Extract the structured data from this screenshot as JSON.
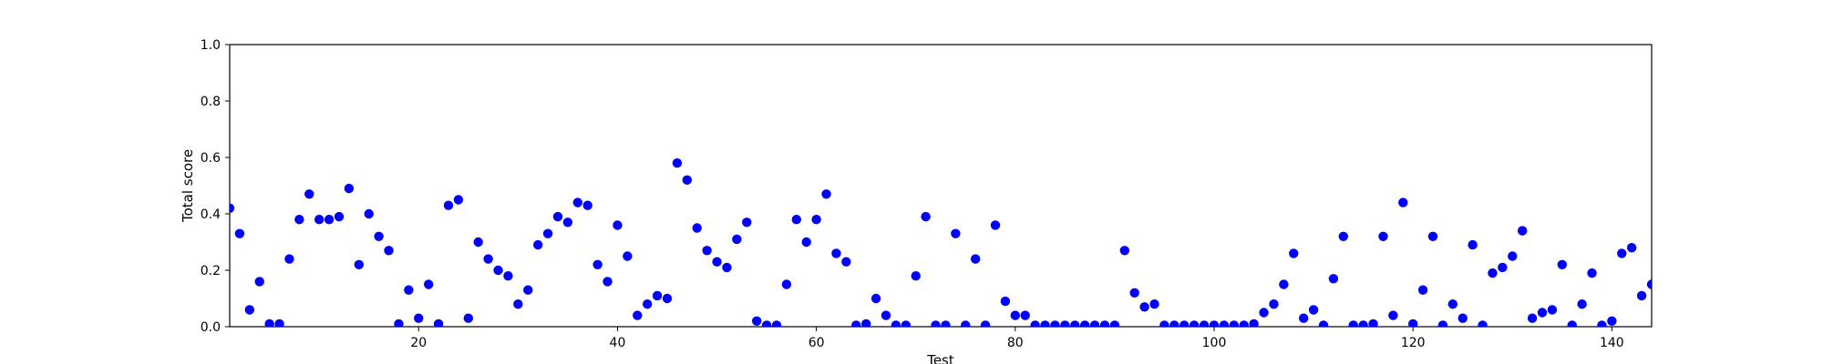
{
  "chart_data": {
    "type": "scatter",
    "title": "",
    "xlabel": "Test",
    "ylabel": "Total score",
    "xlim": [
      1,
      144
    ],
    "ylim": [
      0,
      1
    ],
    "x_ticks": [
      20,
      40,
      60,
      80,
      100,
      120,
      140
    ],
    "y_ticks": [
      0.0,
      0.2,
      0.4,
      0.6,
      0.8,
      1.0
    ],
    "x_tick_labels": [
      "20",
      "40",
      "60",
      "80",
      "100",
      "120",
      "140"
    ],
    "y_tick_labels": [
      "0.0",
      "0.2",
      "0.4",
      "0.6",
      "0.8",
      "1.0"
    ],
    "grid": false,
    "marker_color": "#0000ff",
    "series": [
      {
        "x": [
          1,
          2,
          3,
          4,
          5,
          6,
          7,
          8,
          9,
          10,
          11,
          12,
          13,
          14,
          15,
          16,
          17,
          18,
          19,
          20,
          21,
          22,
          23,
          24,
          25,
          26,
          27,
          28,
          29,
          30,
          31,
          32,
          33,
          34,
          35,
          36,
          37,
          38,
          39,
          40,
          41,
          42,
          43,
          44,
          45,
          46,
          47,
          48,
          49,
          50,
          51,
          52,
          53,
          54,
          55,
          56,
          57,
          58,
          59,
          60,
          61,
          62,
          63,
          64,
          65,
          66,
          67,
          68,
          69,
          70,
          71,
          72,
          73,
          74,
          75,
          76,
          77,
          78,
          79,
          80,
          81,
          82,
          83,
          84,
          85,
          86,
          87,
          88,
          89,
          90,
          91,
          92,
          93,
          94,
          95,
          96,
          97,
          98,
          99,
          100,
          101,
          102,
          103,
          104,
          105,
          106,
          107,
          108,
          109,
          110,
          111,
          112,
          113,
          114,
          115,
          116,
          117,
          118,
          119,
          120,
          121,
          122,
          123,
          124,
          125,
          126,
          127,
          128,
          129,
          130,
          131,
          132,
          133,
          134,
          135,
          136,
          137,
          138,
          139,
          140,
          141,
          142,
          143,
          144
        ],
        "y": [
          0.42,
          0.33,
          0.06,
          0.16,
          0.01,
          0.01,
          0.24,
          0.38,
          0.47,
          0.38,
          0.38,
          0.39,
          0.49,
          0.22,
          0.4,
          0.32,
          0.27,
          0.01,
          0.13,
          0.03,
          0.15,
          0.01,
          0.43,
          0.45,
          0.03,
          0.3,
          0.24,
          0.2,
          0.18,
          0.08,
          0.13,
          0.29,
          0.33,
          0.39,
          0.37,
          0.44,
          0.43,
          0.22,
          0.16,
          0.36,
          0.25,
          0.04,
          0.08,
          0.11,
          0.1,
          0.58,
          0.52,
          0.35,
          0.27,
          0.23,
          0.21,
          0.31,
          0.37,
          0.02,
          0.005,
          0.005,
          0.15,
          0.38,
          0.3,
          0.38,
          0.47,
          0.26,
          0.23,
          0.005,
          0.01,
          0.1,
          0.04,
          0.005,
          0.005,
          0.18,
          0.39,
          0.005,
          0.005,
          0.33,
          0.005,
          0.24,
          0.005,
          0.36,
          0.09,
          0.04,
          0.04,
          0.005,
          0.005,
          0.005,
          0.005,
          0.005,
          0.005,
          0.005,
          0.005,
          0.005,
          0.27,
          0.12,
          0.07,
          0.08,
          0.005,
          0.005,
          0.005,
          0.005,
          0.005,
          0.005,
          0.005,
          0.005,
          0.005,
          0.01,
          0.05,
          0.08,
          0.15,
          0.26,
          0.03,
          0.06,
          0.005,
          0.17,
          0.32,
          0.005,
          0.005,
          0.01,
          0.32,
          0.04,
          0.44,
          0.01,
          0.13,
          0.32,
          0.005,
          0.08,
          0.03,
          0.29,
          0.005,
          0.19,
          0.21,
          0.25,
          0.34,
          0.03,
          0.05,
          0.06,
          0.22,
          0.005,
          0.08,
          0.19,
          0.005,
          0.02,
          0.26,
          0.28,
          0.11,
          0.15
        ]
      }
    ]
  }
}
